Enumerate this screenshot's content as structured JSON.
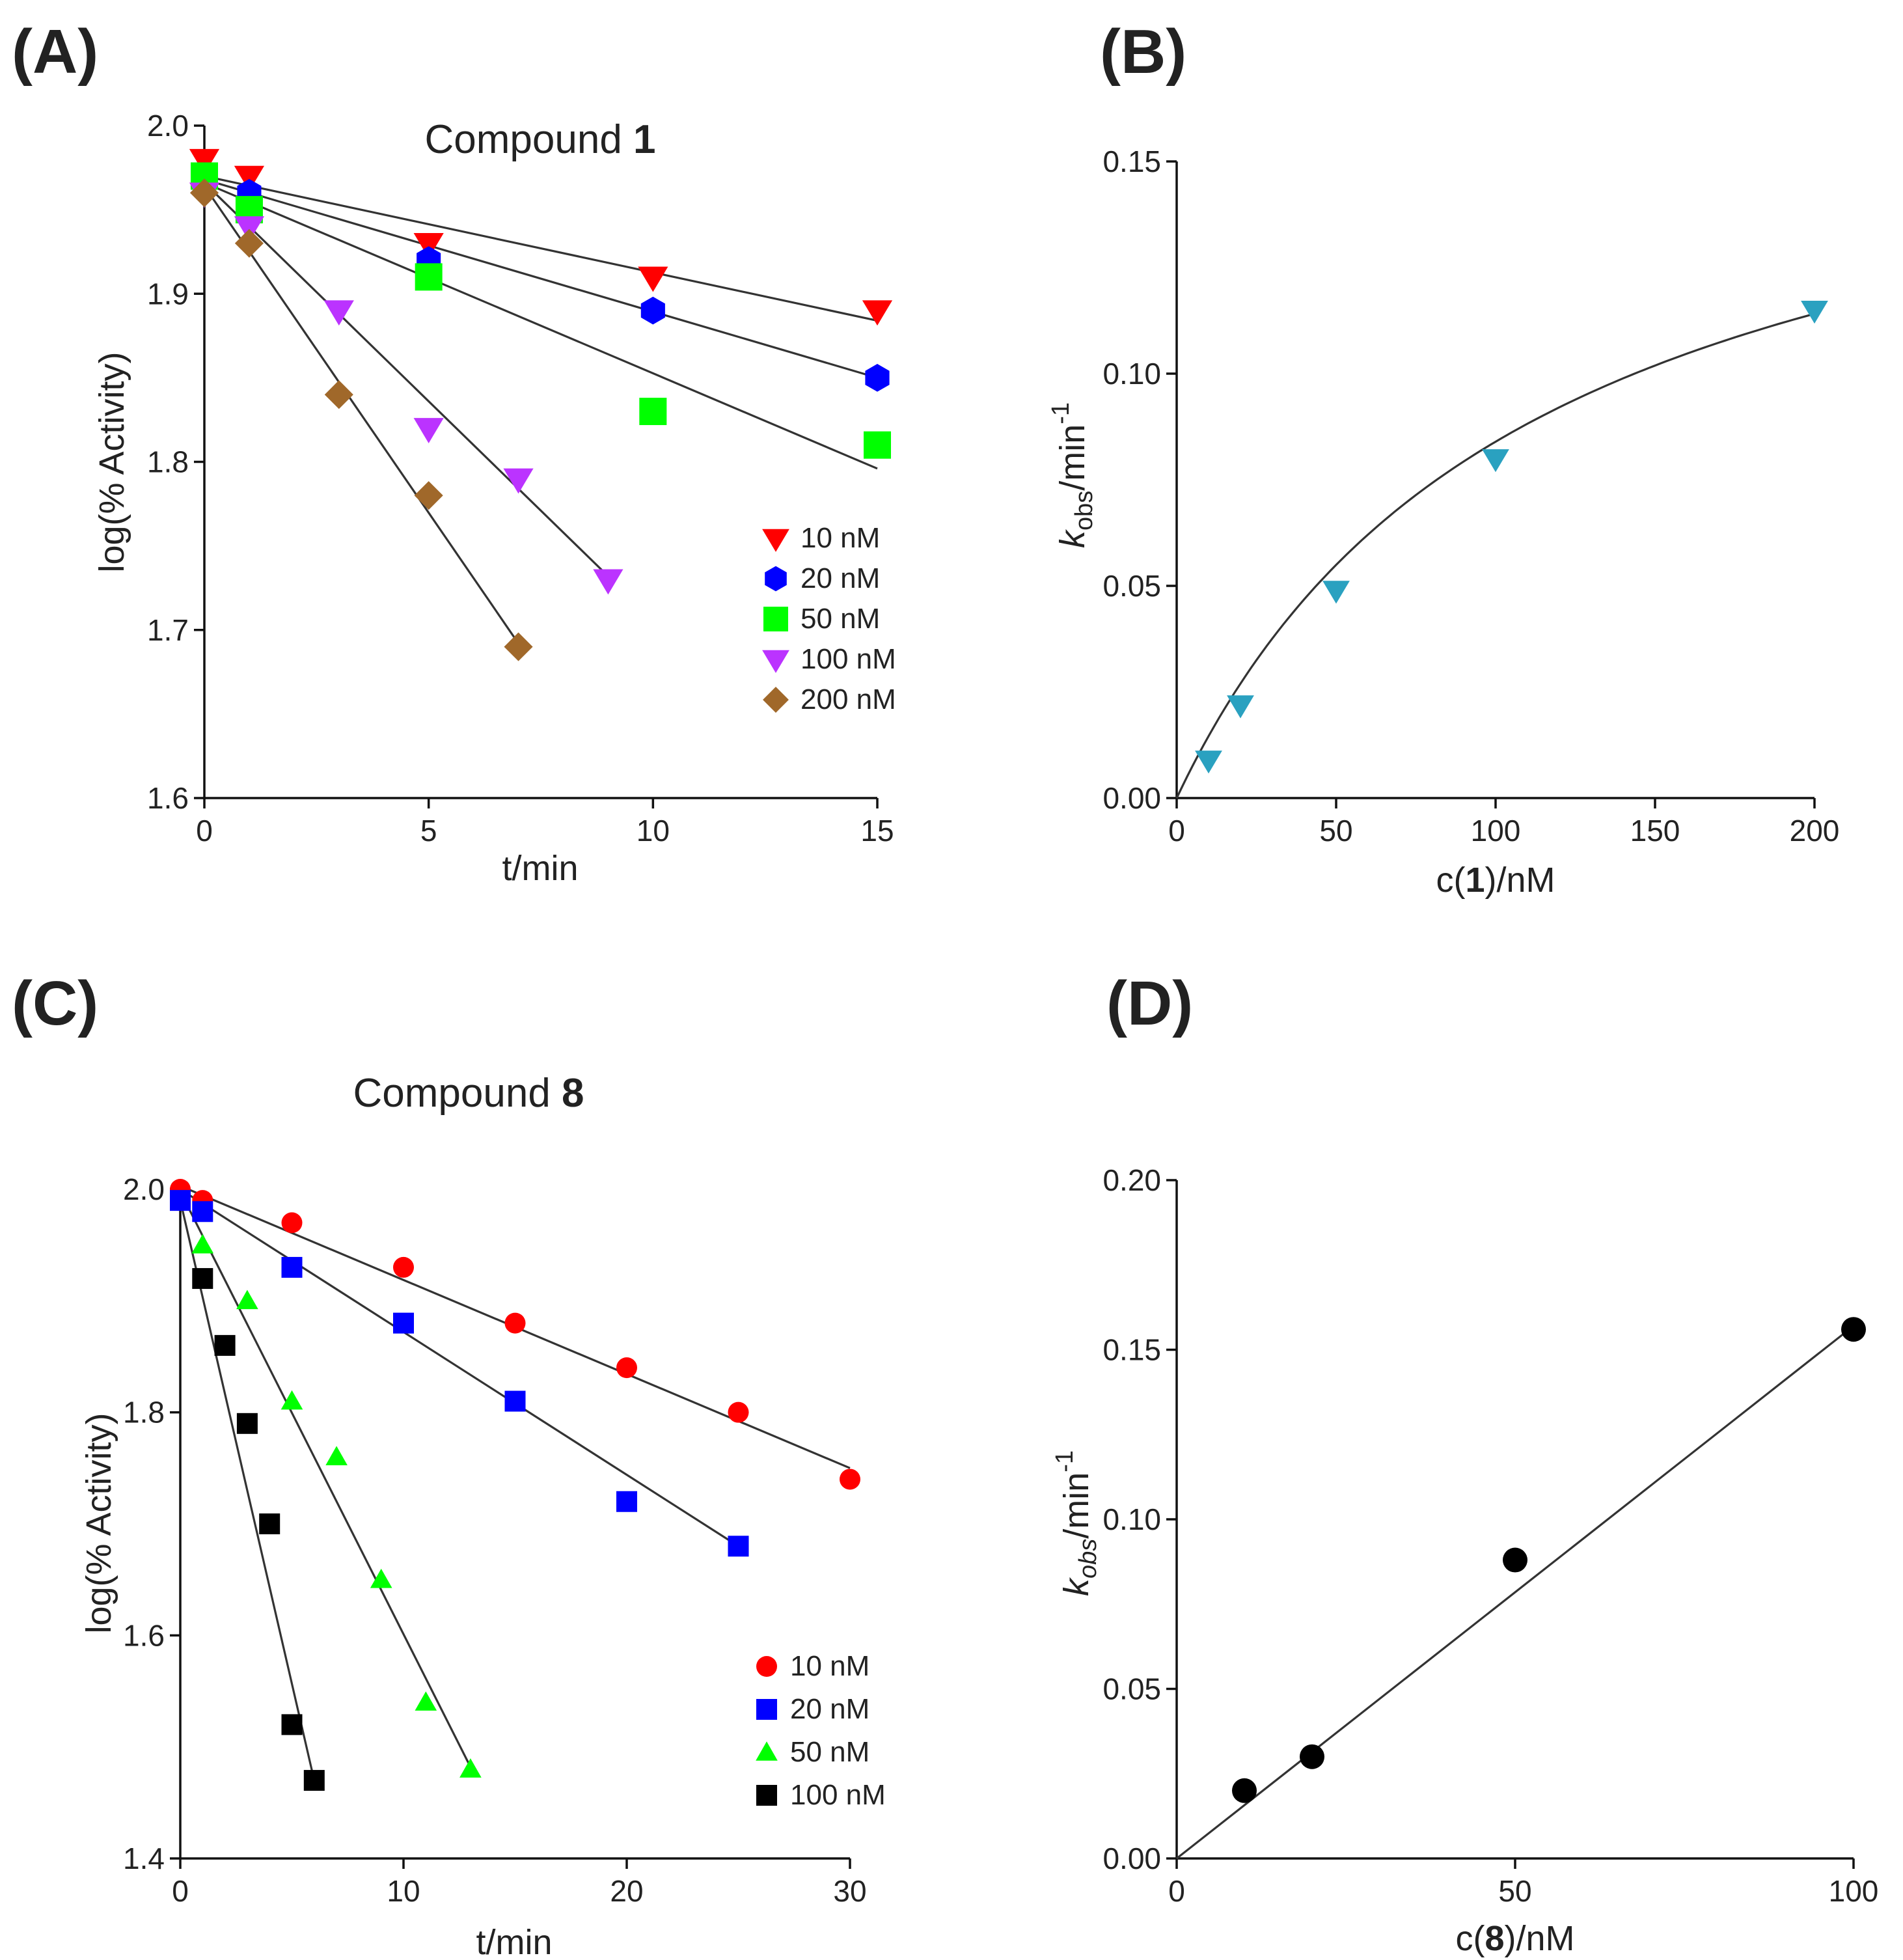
{
  "chart_data": [
    {
      "type": "scatter",
      "panel": "(A)",
      "title_prefix": "Compound ",
      "title_bold": "1",
      "xlabel": "t/min",
      "ylabel": "log(% Activity)",
      "xlim": [
        0,
        15
      ],
      "ylim": [
        1.6,
        2.0
      ],
      "xticks": [
        0,
        5,
        10,
        15
      ],
      "yticks": [
        1.6,
        1.7,
        1.8,
        1.9,
        2.0
      ],
      "ytick_labels": [
        "1.6",
        "1.7",
        "1.8",
        "1.9",
        "2.0"
      ],
      "legend_position": "bottom-right",
      "series": [
        {
          "name": "10 nM",
          "color": "#ff0000",
          "marker": "triangle-down",
          "x": [
            0,
            1,
            5,
            10,
            15
          ],
          "y": [
            1.98,
            1.97,
            1.93,
            1.91,
            1.89
          ],
          "fit": [
            [
              0,
              1.97
            ],
            [
              15,
              1.884
            ]
          ]
        },
        {
          "name": "20 nM",
          "color": "#0000ff",
          "marker": "hexagon",
          "x": [
            0,
            1,
            5,
            10,
            15
          ],
          "y": [
            1.97,
            1.96,
            1.92,
            1.89,
            1.85
          ],
          "fit": [
            [
              0,
              1.968
            ],
            [
              15,
              1.85
            ]
          ]
        },
        {
          "name": "50 nM",
          "color": "#00ff00",
          "marker": "square",
          "x": [
            0,
            1,
            5,
            10,
            15
          ],
          "y": [
            1.97,
            1.95,
            1.91,
            1.83,
            1.81
          ],
          "fit": [
            [
              0,
              1.966
            ],
            [
              15,
              1.796
            ]
          ]
        },
        {
          "name": "100 nM",
          "color": "#bb33ff",
          "marker": "triangle-down",
          "x": [
            0,
            1,
            3,
            5,
            7,
            9
          ],
          "y": [
            1.96,
            1.94,
            1.89,
            1.82,
            1.79,
            1.73
          ],
          "fit": [
            [
              0,
              1.966
            ],
            [
              9,
              1.732
            ]
          ]
        },
        {
          "name": "200 nM",
          "color": "#a0682a",
          "marker": "diamond",
          "x": [
            0,
            1,
            3,
            5,
            7
          ],
          "y": [
            1.96,
            1.93,
            1.84,
            1.78,
            1.69
          ],
          "fit": [
            [
              0,
              1.964
            ],
            [
              7,
              1.692
            ]
          ]
        }
      ]
    },
    {
      "type": "scatter",
      "panel": "(B)",
      "xlabel_prefix": "c(",
      "xlabel_bold": "1",
      "xlabel_suffix": ")/nM",
      "ylabel_k": "k",
      "ylabel_sub": "obs",
      "ylabel_unit": "/min",
      "ylabel_sup": "-1",
      "xlim": [
        0,
        200
      ],
      "ylim": [
        0.0,
        0.15
      ],
      "xticks": [
        0,
        50,
        100,
        150,
        200
      ],
      "yticks": [
        0.0,
        0.05,
        0.1,
        0.15
      ],
      "ytick_labels": [
        "0.00",
        "0.05",
        "0.10",
        "0.15"
      ],
      "series": [
        {
          "name": "Compound 1",
          "color": "#2aa1c0",
          "marker": "triangle-down",
          "x": [
            10,
            20,
            50,
            100,
            200
          ],
          "y": [
            0.009,
            0.022,
            0.049,
            0.08,
            0.115
          ]
        }
      ],
      "fit_curve": {
        "model": "kmax*c/(K+c)",
        "kmax": 0.178,
        "K": 112
      }
    },
    {
      "type": "scatter",
      "panel": "(C)",
      "title_prefix": "Compound ",
      "title_bold": "8",
      "xlabel": "t/min",
      "ylabel": "log(% Activity)",
      "xlim": [
        0,
        30
      ],
      "ylim": [
        1.4,
        2.0
      ],
      "xticks": [
        0,
        10,
        20,
        30
      ],
      "yticks": [
        1.4,
        1.6,
        1.8,
        2.0
      ],
      "ytick_labels": [
        "1.4",
        "1.6",
        "1.8",
        "2.0"
      ],
      "legend_position": "bottom-right",
      "series": [
        {
          "name": "10 nM",
          "color": "#ff0000",
          "marker": "circle",
          "x": [
            0,
            1,
            5,
            10,
            15,
            20,
            25,
            30
          ],
          "y": [
            2.0,
            1.99,
            1.97,
            1.93,
            1.88,
            1.84,
            1.8,
            1.74
          ],
          "fit": [
            [
              0,
              2.003
            ],
            [
              30,
              1.75
            ]
          ]
        },
        {
          "name": "20 nM",
          "color": "#0000ff",
          "marker": "square",
          "x": [
            0,
            1,
            5,
            10,
            15,
            20,
            25
          ],
          "y": [
            1.99,
            1.98,
            1.93,
            1.88,
            1.81,
            1.72,
            1.68
          ],
          "fit": [
            [
              0,
              2.0
            ],
            [
              25,
              1.68
            ]
          ]
        },
        {
          "name": "50 nM",
          "color": "#00ff00",
          "marker": "triangle-up",
          "x": [
            1,
            3,
            5,
            7,
            9,
            11,
            13
          ],
          "y": [
            1.95,
            1.9,
            1.81,
            1.76,
            1.65,
            1.54,
            1.48
          ],
          "fit": [
            [
              0,
              1.998
            ],
            [
              13,
              1.482
            ]
          ]
        },
        {
          "name": "100 nM",
          "color": "#000000",
          "marker": "square",
          "x": [
            1,
            2,
            3,
            4,
            5,
            6
          ],
          "y": [
            1.92,
            1.86,
            1.79,
            1.7,
            1.52,
            1.47
          ],
          "fit": [
            [
              0,
              1.99
            ],
            [
              6,
              1.47
            ]
          ]
        }
      ]
    },
    {
      "type": "scatter",
      "panel": "(D)",
      "xlabel_prefix": "c(",
      "xlabel_bold": "8",
      "xlabel_suffix": ")/nM",
      "ylabel_k": "k",
      "ylabel_sub": "obs",
      "ylabel_unit": "/min",
      "ylabel_sup": "-1",
      "xlim": [
        0,
        100
      ],
      "ylim": [
        0.0,
        0.2
      ],
      "xticks": [
        0,
        50,
        100
      ],
      "yticks": [
        0.0,
        0.05,
        0.1,
        0.15,
        0.2
      ],
      "ytick_labels": [
        "0.00",
        "0.05",
        "0.10",
        "0.15",
        "0.20"
      ],
      "series": [
        {
          "name": "Compound 8",
          "color": "#000000",
          "marker": "circle",
          "x": [
            10,
            20,
            50,
            100
          ],
          "y": [
            0.02,
            0.03,
            0.088,
            0.156
          ]
        }
      ],
      "fit_line": [
        [
          0,
          0.0
        ],
        [
          100,
          0.157
        ]
      ]
    }
  ]
}
